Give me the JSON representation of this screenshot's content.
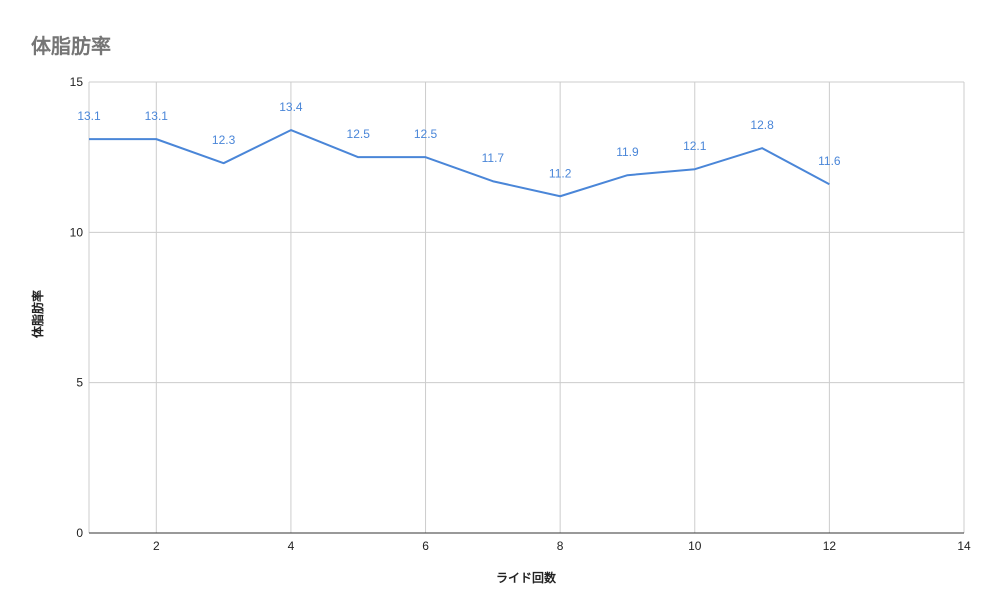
{
  "chart_data": {
    "type": "line",
    "title": "体脂肪率",
    "xlabel": "ライド回数",
    "ylabel": "体脂肪率",
    "xlim": [
      1,
      14
    ],
    "ylim": [
      0,
      15
    ],
    "x_ticks": [
      2,
      4,
      6,
      8,
      10,
      12,
      14
    ],
    "y_ticks": [
      0,
      5,
      10,
      15
    ],
    "grid": true,
    "data_labels": true,
    "series": [
      {
        "x": [
          1,
          2,
          3,
          4,
          5,
          6,
          7,
          8,
          9,
          10,
          11,
          12
        ],
        "values": [
          13.1,
          13.1,
          12.3,
          13.4,
          12.5,
          12.5,
          11.7,
          11.2,
          11.9,
          12.1,
          12.8,
          11.6
        ],
        "color": "#4a86d8"
      }
    ]
  }
}
